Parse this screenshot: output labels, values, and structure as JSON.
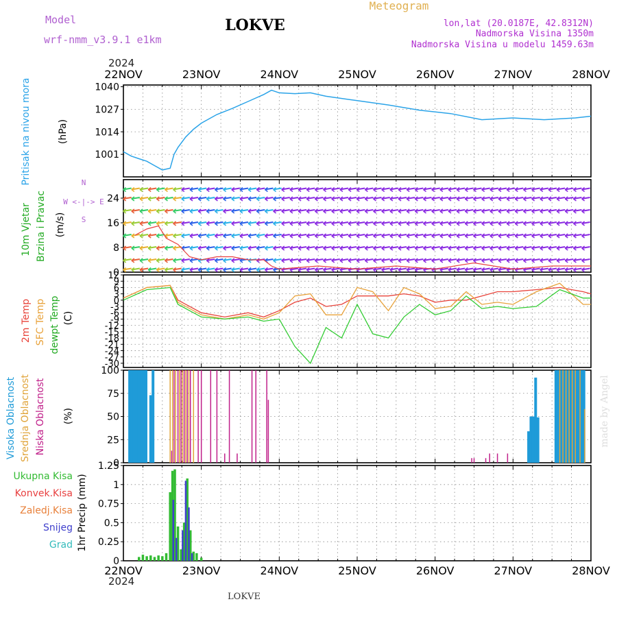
{
  "header": {
    "model_label": "Model",
    "model_name": "wrf-nmm_v3.9.1  e1km",
    "title": "LOKVE",
    "meteogram_label": "Meteogram",
    "lonlat": "lon,lat (20.0187E, 42.8312N)",
    "elevation": "Nadmorska Visina 1350m",
    "model_elevation": "Nadmorska Visina u modelu 1459.63m",
    "footer_name": "LOKVE",
    "credit": "made by Angel"
  },
  "colors": {
    "pressure": "#2aa3e8",
    "temp_2m": "#e8433a",
    "temp_sfc": "#e8a23a",
    "dewpoint": "#33cc33",
    "cloud_high": "#1f9bd8",
    "cloud_mid": "#e0a43a",
    "cloud_low": "#c0208a",
    "precip_total": "#33bb33",
    "precip_conv": "#e84040",
    "precip_frozen": "#e8803a",
    "snow": "#4040cc",
    "hail": "#33bbbb",
    "wind_barb": "#8a2be2",
    "wind_speed": "#e84040",
    "title_purple": "#b030d0",
    "label_orange": "#e0b050"
  },
  "chart_data": [
    {
      "type": "line",
      "id": "pressure",
      "ylabel_name": "Pritisak na nivou mora",
      "ylabel_unit": "(hPa)",
      "ylim": [
        988,
        1041
      ],
      "yticks": [
        "1040",
        "1027",
        "1014",
        "1001"
      ],
      "ytick_values": [
        1040,
        1027,
        1014,
        1001
      ],
      "x_days": [
        0,
        0.1,
        0.2,
        0.3,
        0.4,
        0.5,
        0.55,
        0.6,
        0.65,
        0.7,
        0.8,
        0.9,
        1.0,
        1.2,
        1.4,
        1.6,
        1.8,
        1.9,
        2.0,
        2.2,
        2.4,
        2.6,
        3.0,
        3.4,
        3.8,
        4.2,
        4.6,
        5.0,
        5.4,
        5.8,
        6.0
      ],
      "values": [
        1002.5,
        1000.0,
        998.5,
        997.0,
        994.5,
        992.0,
        992.5,
        993.0,
        1001.0,
        1005.0,
        1011.0,
        1015.5,
        1019.0,
        1024.0,
        1027.5,
        1031.5,
        1035.5,
        1038.0,
        1036.5,
        1036.0,
        1036.5,
        1034.5,
        1032.0,
        1029.5,
        1026.5,
        1024.5,
        1021.0,
        1022.0,
        1021.0,
        1022.0,
        1023.0
      ]
    },
    {
      "type": "line",
      "id": "wind",
      "ylabel_name": "10m Vjetar",
      "ylabel_name2": "Brzina i Pravac",
      "ylabel_unit": "(m/s)",
      "compass": "W <-|-> E",
      "compass_n": "N",
      "compass_s": "S",
      "ylim": [
        0,
        30
      ],
      "yticks": [
        "24",
        "16",
        "8",
        "0"
      ],
      "ytick_values": [
        24,
        16,
        8,
        0
      ],
      "x_days": [
        0.15,
        0.3,
        0.45,
        0.55,
        0.7,
        0.85,
        1.0,
        1.2,
        1.4,
        1.6,
        1.8,
        1.9,
        2.0,
        2.5,
        3.0,
        3.5,
        4.0,
        4.5,
        5.0,
        5.5,
        6.0
      ],
      "values": [
        12,
        14,
        15,
        11,
        9,
        5,
        4,
        5,
        5,
        4,
        4,
        2,
        1,
        2,
        1,
        2,
        1,
        3,
        1,
        2,
        2
      ]
    },
    {
      "type": "line",
      "id": "temperature",
      "ylabel_2m": "2m Temp",
      "ylabel_sfc": "SFC Temp",
      "ylabel_dewpt": "dewpt Temp",
      "ylabel_unit": "(C)",
      "ylim": [
        -32,
        12
      ],
      "yticks": [
        "12",
        "9",
        "6",
        "3",
        "0",
        "-3",
        "-6",
        "-9",
        "-12",
        "-15",
        "-18",
        "-21",
        "-24",
        "-27",
        "-30"
      ],
      "ytick_values": [
        12,
        9,
        6,
        3,
        0,
        -3,
        -6,
        -9,
        -12,
        -15,
        -18,
        -21,
        -24,
        -27,
        -30
      ],
      "x_days": [
        0,
        0.3,
        0.6,
        0.7,
        1.0,
        1.3,
        1.6,
        1.8,
        2.0,
        2.2,
        2.4,
        2.6,
        2.8,
        3.0,
        3.2,
        3.4,
        3.6,
        3.8,
        4.0,
        4.2,
        4.4,
        4.6,
        4.8,
        5.0,
        5.3,
        5.6,
        5.9,
        6.0
      ],
      "series": [
        {
          "name": "2m Temp",
          "values": [
            1,
            6,
            7,
            0,
            -6,
            -8,
            -6,
            -8,
            -5,
            -1,
            1,
            -3,
            -2,
            2,
            2,
            2,
            3,
            2,
            -1,
            0,
            0,
            2,
            4,
            4,
            5,
            6,
            4,
            3
          ]
        },
        {
          "name": "SFC Temp",
          "values": [
            1,
            6,
            7,
            -1,
            -7,
            -9,
            -7,
            -9,
            -6,
            2,
            3,
            -7,
            -7,
            6,
            4,
            -5,
            6,
            3,
            -4,
            -3,
            4,
            -2,
            -1,
            -2,
            4,
            8,
            -2,
            -2
          ]
        },
        {
          "name": "dewpt Temp",
          "values": [
            0,
            5,
            6,
            -2,
            -8,
            -9,
            -8,
            -10,
            -9,
            -22,
            -30,
            -13,
            -18,
            -2,
            -16,
            -18,
            -8,
            -2,
            -7,
            -5,
            2,
            -4,
            -3,
            -4,
            -3,
            5,
            1,
            1
          ]
        }
      ]
    },
    {
      "type": "bar",
      "id": "clouds",
      "ylabel_high": "Visoka Oblacnost",
      "ylabel_mid": "Srednja Oblacnost",
      "ylabel_low": "Niska Oblacnost",
      "ylabel_unit": "(%)",
      "ylim": [
        0,
        100
      ],
      "yticks": [
        "100",
        "75",
        "50",
        "25",
        "0"
      ],
      "ytick_values": [
        100,
        75,
        50,
        25,
        0
      ],
      "series": [
        {
          "name": "Visoka Oblacnost",
          "x_days": [
            0.08,
            0.11,
            0.14,
            0.17,
            0.2,
            0.23,
            0.26,
            0.29,
            0.35,
            0.38,
            5.2,
            5.23,
            5.26,
            5.29,
            5.32,
            5.55,
            5.58,
            5.61,
            5.64,
            5.67,
            5.7,
            5.73,
            5.76,
            5.79,
            5.82,
            5.85,
            5.88,
            5.91
          ],
          "values": [
            100,
            100,
            100,
            100,
            100,
            100,
            100,
            100,
            73,
            100,
            34,
            50,
            50,
            92,
            49,
            100,
            100,
            100,
            100,
            100,
            100,
            100,
            100,
            100,
            100,
            100,
            100,
            100
          ]
        },
        {
          "name": "Srednja Oblacnost",
          "x_days": [
            0.6,
            0.63,
            0.67,
            0.72,
            0.76,
            0.8,
            0.84,
            0.9,
            5.6,
            5.64,
            5.68,
            5.72,
            5.76,
            5.8,
            5.86,
            5.92
          ],
          "values": [
            100,
            100,
            100,
            100,
            100,
            100,
            100,
            100,
            100,
            100,
            100,
            100,
            100,
            100,
            100,
            58
          ]
        },
        {
          "name": "Niska Oblacnost",
          "x_days": [
            0.62,
            0.65,
            0.7,
            0.74,
            0.78,
            0.82,
            0.86,
            0.96,
            1.0,
            1.12,
            1.2,
            1.3,
            1.36,
            1.46,
            1.65,
            1.7,
            1.84,
            1.86,
            4.47,
            4.5,
            4.65,
            4.7,
            4.8,
            4.93
          ],
          "values": [
            13,
            100,
            100,
            100,
            100,
            100,
            100,
            100,
            100,
            100,
            100,
            10,
            100,
            10,
            100,
            100,
            100,
            68,
            5,
            5,
            5,
            10,
            10,
            10
          ]
        }
      ]
    },
    {
      "type": "bar",
      "id": "precip",
      "ylabel_total": "Ukupna Kisa",
      "ylabel_conv": "Konvek.Kisa",
      "ylabel_frozen": "Zaledj.Kisa",
      "ylabel_snow": "Snijeg",
      "ylabel_hail": "Grad",
      "ylabel_unit": "1hr Precip (mm)",
      "ylim": [
        0,
        1.25
      ],
      "yticks": [
        "1.25",
        "1",
        "0.75",
        "0.5",
        "0.25",
        "0"
      ],
      "ytick_values": [
        1.25,
        1,
        0.75,
        0.5,
        0.25,
        0
      ],
      "series": [
        {
          "name": "Ukupna Kisa",
          "x_days": [
            0.2,
            0.25,
            0.3,
            0.35,
            0.4,
            0.45,
            0.5,
            0.55,
            0.6,
            0.63,
            0.66,
            0.7,
            0.74,
            0.78,
            0.82,
            0.86,
            0.9,
            0.94,
            1.0
          ],
          "values": [
            0.05,
            0.08,
            0.06,
            0.07,
            0.05,
            0.07,
            0.06,
            0.1,
            0.9,
            1.18,
            1.2,
            0.45,
            0.15,
            0.5,
            1.08,
            0.4,
            0.12,
            0.1,
            0.04
          ]
        },
        {
          "name": "Snijeg",
          "x_days": [
            0.64,
            0.68,
            0.76,
            0.8,
            0.84,
            0.88
          ],
          "values": [
            0.8,
            0.3,
            0.4,
            1.05,
            0.7,
            0.1
          ]
        }
      ]
    }
  ],
  "x_axis": {
    "year_top": "2024",
    "year_bottom": "2024",
    "labels": [
      "22NOV",
      "23NOV",
      "24NOV",
      "25NOV",
      "26NOV",
      "27NOV",
      "28NOV"
    ]
  }
}
